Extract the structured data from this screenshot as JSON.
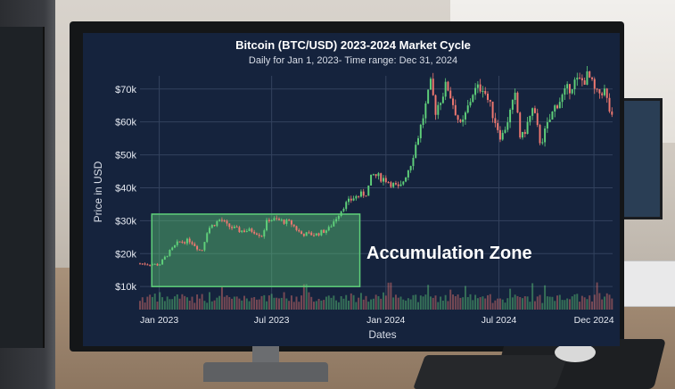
{
  "chart_data": {
    "type": "candlestick",
    "title": "Bitcoin (BTC/USD) 2023-2024 Market Cycle",
    "subtitle": "Daily for Jan 1, 2023- Time range: Dec 31, 2024",
    "xlabel": "Dates",
    "ylabel": "Price in USD",
    "x_ticks": [
      "Jan 2023",
      "Jul 2023",
      "Jan 2024",
      "Jul 2024",
      "Dec 2024"
    ],
    "y_ticks": [
      "$10k",
      "$20k",
      "$30k",
      "$40k",
      "$50k",
      "$60k",
      "$70k"
    ],
    "ylim": [
      3000,
      74000
    ],
    "x_range": [
      "2022-12-01",
      "2024-12-31"
    ],
    "grid": true,
    "annotation": {
      "label": "Accumulation Zone",
      "x_range": [
        "2022-12-20",
        "2023-11-20"
      ],
      "y_range": [
        10000,
        32000
      ],
      "color": "#5fd07a"
    },
    "colors": {
      "background": "#15233d",
      "up": "#5fd07a",
      "down": "#f07870",
      "grid": "#33425e"
    },
    "price_path": [
      [
        "2022-12-01",
        17000
      ],
      [
        "2022-12-20",
        16800
      ],
      [
        "2023-01-01",
        16600
      ],
      [
        "2023-01-15",
        20000
      ],
      [
        "2023-02-01",
        23500
      ],
      [
        "2023-02-20",
        24000
      ],
      [
        "2023-03-10",
        20500
      ],
      [
        "2023-03-20",
        27500
      ],
      [
        "2023-04-10",
        30500
      ],
      [
        "2023-04-20",
        28500
      ],
      [
        "2023-05-10",
        27000
      ],
      [
        "2023-06-01",
        27000
      ],
      [
        "2023-06-15",
        25500
      ],
      [
        "2023-06-25",
        30500
      ],
      [
        "2023-07-10",
        30200
      ],
      [
        "2023-08-01",
        29300
      ],
      [
        "2023-08-17",
        26000
      ],
      [
        "2023-09-10",
        25800
      ],
      [
        "2023-10-01",
        27500
      ],
      [
        "2023-10-25",
        34500
      ],
      [
        "2023-11-10",
        37000
      ],
      [
        "2023-12-01",
        38500
      ],
      [
        "2023-12-10",
        44000
      ],
      [
        "2024-01-01",
        42500
      ],
      [
        "2024-01-23",
        39500
      ],
      [
        "2024-02-10",
        47500
      ],
      [
        "2024-02-28",
        60000
      ],
      [
        "2024-03-14",
        72000
      ],
      [
        "2024-03-20",
        63000
      ],
      [
        "2024-04-08",
        71500
      ],
      [
        "2024-05-01",
        58000
      ],
      [
        "2024-05-20",
        69000
      ],
      [
        "2024-06-05",
        71000
      ],
      [
        "2024-07-05",
        55000
      ],
      [
        "2024-07-28",
        68000
      ],
      [
        "2024-08-05",
        54000
      ],
      [
        "2024-08-25",
        64000
      ],
      [
        "2024-09-06",
        53500
      ],
      [
        "2024-09-30",
        65000
      ],
      [
        "2024-10-29",
        72000
      ],
      [
        "2024-11-13",
        72500
      ],
      [
        "2024-11-22",
        74000
      ],
      [
        "2024-12-05",
        68000
      ],
      [
        "2024-12-17",
        70000
      ],
      [
        "2024-12-31",
        60000
      ]
    ],
    "volume_level": [
      0.2,
      0.25,
      0.18,
      0.3,
      0.22,
      0.35,
      0.28,
      0.2,
      0.4,
      0.25
    ]
  }
}
